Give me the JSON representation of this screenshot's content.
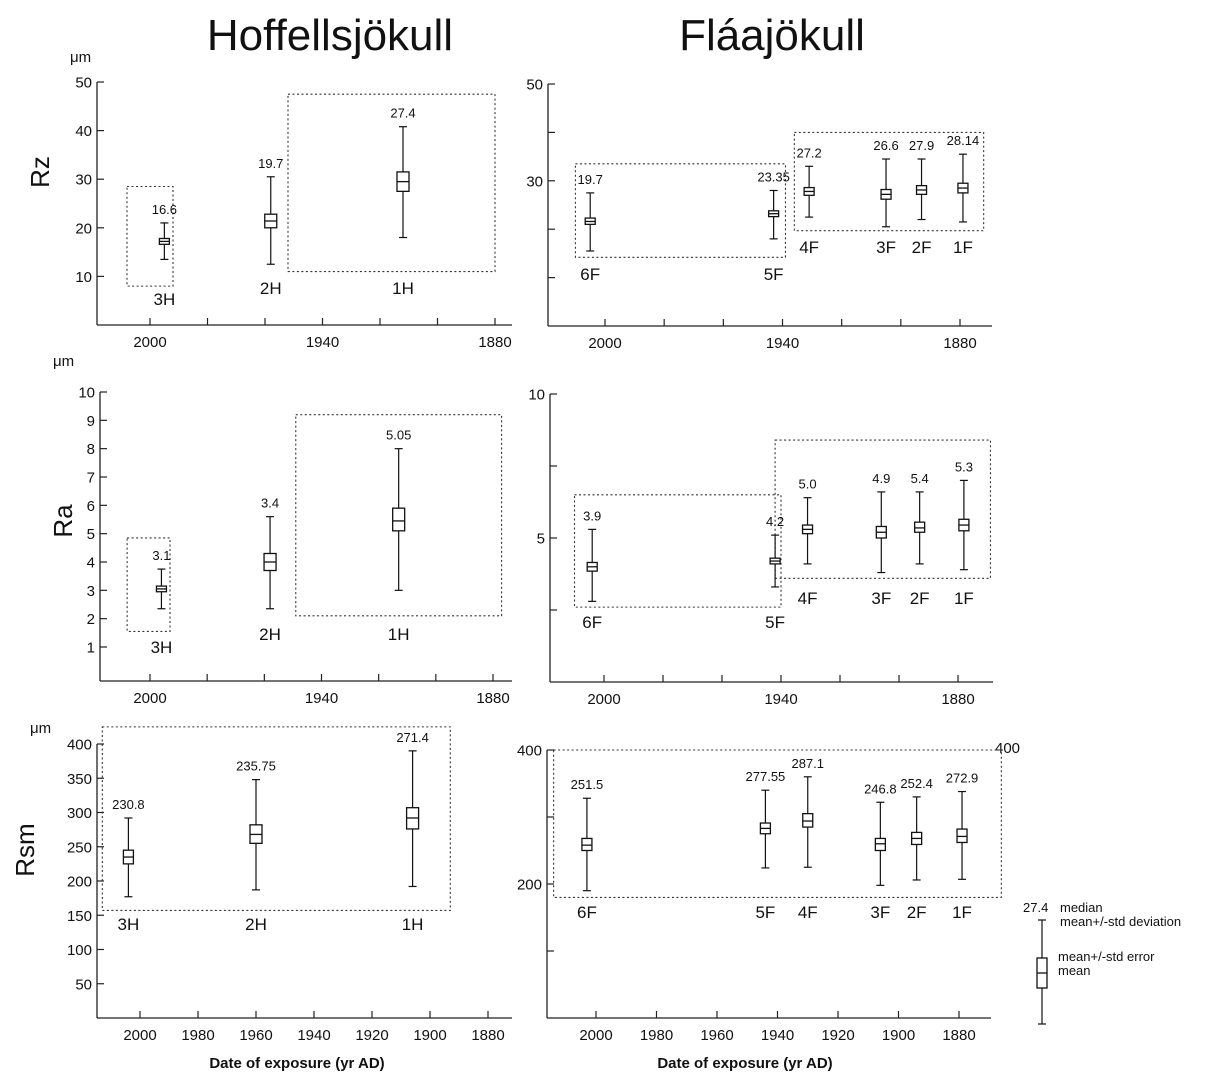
{
  "titles": {
    "left": "Hoffellsjökull",
    "right": "Fláajökull"
  },
  "row_labels": {
    "rz": "Rz",
    "ra": "Ra",
    "rsm": "Rsm"
  },
  "unit": "μm",
  "x_axis_title": "Date of exposure (yr AD)",
  "legend": {
    "value": "27.4",
    "median": "median",
    "mean_std_dev": "mean+/-std deviation",
    "mean_std_err": "mean+/-std error",
    "mean": "mean"
  },
  "extra_label": "400",
  "chart_data": [
    {
      "id": "hoff_rz",
      "type": "boxplot",
      "glacier": "Hoffellsjökull",
      "ylabel": "Rz",
      "unit": "μm",
      "ylim": [
        0,
        50
      ],
      "yticks": [
        10,
        20,
        30,
        40,
        50
      ],
      "ytick_labels": [
        "10",
        "20",
        "30",
        "40",
        "50"
      ],
      "xlim": [
        1870,
        2020
      ],
      "xticks": [
        2000,
        1940,
        1880
      ],
      "xtick_labels": [
        "2000",
        "1940",
        "1880"
      ],
      "xminor": [
        1980,
        1960,
        1920,
        1900
      ],
      "boxes": [
        {
          "x": 1995,
          "median_label": "16.6",
          "mean": 17.2,
          "se": [
            16.6,
            17.8
          ],
          "sd": [
            13.5,
            21.0
          ]
        },
        {
          "x": 1958,
          "median_label": "19.7",
          "mean": 21.4,
          "se": [
            20.0,
            22.8
          ],
          "sd": [
            12.5,
            30.5
          ]
        },
        {
          "x": 1912,
          "median_label": "27.4",
          "mean": 29.5,
          "se": [
            27.5,
            31.5
          ],
          "sd": [
            18.0,
            40.8
          ]
        }
      ],
      "groups": [
        {
          "label": "3H",
          "x": [
            1992,
            2008
          ],
          "y": [
            8,
            28.5
          ]
        },
        {
          "label": "2H",
          "x": [
            1880,
            1952
          ],
          "y": [
            11,
            47.5
          ]
        }
      ]
    },
    {
      "id": "flaa_rz",
      "type": "boxplot",
      "glacier": "Fláajökull",
      "ylabel": "Rz",
      "unit": "μm",
      "ylim": [
        0,
        50
      ],
      "yticks": [
        30,
        50
      ],
      "yminor": [
        10,
        20,
        40
      ],
      "ytick_labels": [
        "30",
        "50"
      ],
      "xlim": [
        1870,
        2020
      ],
      "xticks": [
        2000,
        1940,
        1880
      ],
      "xtick_labels": [
        "2000",
        "1940",
        "1880"
      ],
      "xminor": [
        1980,
        1960,
        1920,
        1900
      ],
      "boxes": [
        {
          "x": 2005,
          "median_label": "19.7",
          "mean": 21.6,
          "se": [
            21.0,
            22.3
          ],
          "sd": [
            15.5,
            27.5
          ]
        },
        {
          "x": 1943,
          "median_label": "23.35",
          "mean": 23.2,
          "se": [
            22.6,
            23.8
          ],
          "sd": [
            18.0,
            28.0
          ]
        },
        {
          "x": 1931,
          "median_label": "27.2",
          "mean": 27.8,
          "se": [
            27.0,
            28.6
          ],
          "sd": [
            22.5,
            33.0
          ]
        },
        {
          "x": 1905,
          "median_label": "26.6",
          "mean": 27.2,
          "se": [
            26.2,
            28.2
          ],
          "sd": [
            20.5,
            34.5
          ]
        },
        {
          "x": 1893,
          "median_label": "27.9",
          "mean": 28.1,
          "se": [
            27.2,
            29.0
          ],
          "sd": [
            22.0,
            34.5
          ]
        },
        {
          "x": 1879,
          "median_label": "28.14",
          "mean": 28.5,
          "se": [
            27.5,
            29.5
          ],
          "sd": [
            21.5,
            35.5
          ]
        }
      ],
      "groups": [
        {
          "label": "6F",
          "x": [
            1939,
            2010
          ],
          "y": [
            14.2,
            33.5
          ]
        },
        {
          "label": "4F",
          "x": [
            1872,
            1936
          ],
          "y": [
            19.7,
            40
          ]
        }
      ]
    },
    {
      "id": "hoff_ra",
      "type": "boxplot",
      "glacier": "Hoffellsjökull",
      "ylabel": "Ra",
      "unit": "μm",
      "ylim": [
        -0.2,
        10
      ],
      "yticks": [
        1,
        2,
        3,
        4,
        5,
        6,
        7,
        8,
        9,
        10
      ],
      "ytick_labels": [
        "1",
        "2",
        "3",
        "4",
        "5",
        "6",
        "7",
        "8",
        "9",
        "10"
      ],
      "xlim": [
        1870,
        2020
      ],
      "xticks": [
        2000,
        1940,
        1880
      ],
      "xtick_labels": [
        "2000",
        "1940",
        "1880"
      ],
      "xminor": [
        1980,
        1960,
        1920,
        1900
      ],
      "boxes": [
        {
          "x": 1996,
          "median_label": "3.1",
          "mean": 3.05,
          "se": [
            2.95,
            3.15
          ],
          "sd": [
            2.35,
            3.75
          ]
        },
        {
          "x": 1958,
          "median_label": "3.4",
          "mean": 4.0,
          "se": [
            3.7,
            4.3
          ],
          "sd": [
            2.35,
            5.6
          ]
        },
        {
          "x": 1913,
          "median_label": "5.05",
          "mean": 5.45,
          "se": [
            5.1,
            5.9
          ],
          "sd": [
            3.0,
            8.0
          ]
        }
      ],
      "groups": [
        {
          "label": "3H",
          "x": [
            1993,
            2008
          ],
          "y": [
            1.55,
            4.85
          ]
        },
        {
          "label": "2H",
          "x": [
            1877,
            1949
          ],
          "y": [
            2.1,
            9.2
          ]
        }
      ]
    },
    {
      "id": "flaa_ra",
      "type": "boxplot",
      "glacier": "Fláajökull",
      "ylabel": "Ra",
      "unit": "μm",
      "ylim": [
        0,
        10
      ],
      "yticks": [
        5,
        10
      ],
      "yminor": [
        2.5,
        7.5
      ],
      "ytick_labels": [
        "5",
        "10"
      ],
      "xlim": [
        1870,
        2020
      ],
      "xticks": [
        2000,
        1940,
        1880
      ],
      "xtick_labels": [
        "2000",
        "1940",
        "1880"
      ],
      "xminor": [
        1980,
        1960,
        1920,
        1900
      ],
      "boxes": [
        {
          "x": 2004,
          "median_label": "3.9",
          "mean": 4.0,
          "se": [
            3.85,
            4.15
          ],
          "sd": [
            2.8,
            5.3
          ]
        },
        {
          "x": 1942,
          "median_label": "4.2",
          "mean": 4.2,
          "se": [
            4.1,
            4.3
          ],
          "sd": [
            3.3,
            5.1
          ]
        },
        {
          "x": 1931,
          "median_label": "5.0",
          "mean": 5.3,
          "se": [
            5.15,
            5.45
          ],
          "sd": [
            4.1,
            6.4
          ]
        },
        {
          "x": 1906,
          "median_label": "4.9",
          "mean": 5.2,
          "se": [
            5.0,
            5.4
          ],
          "sd": [
            3.8,
            6.6
          ]
        },
        {
          "x": 1893,
          "median_label": "5.4",
          "mean": 5.35,
          "se": [
            5.2,
            5.55
          ],
          "sd": [
            4.1,
            6.6
          ]
        },
        {
          "x": 1878,
          "median_label": "5.3",
          "mean": 5.45,
          "se": [
            5.25,
            5.65
          ],
          "sd": [
            3.9,
            7.0
          ]
        }
      ],
      "groups": [
        {
          "label": "6F",
          "x": [
            1940,
            2010
          ],
          "y": [
            2.6,
            6.5
          ]
        },
        {
          "label": "4F",
          "x": [
            1869,
            1942
          ],
          "y": [
            3.6,
            8.4
          ]
        }
      ]
    },
    {
      "id": "hoff_rsm",
      "type": "boxplot",
      "glacier": "Hoffellsjökull",
      "ylabel": "Rsm",
      "unit": "μm",
      "ylim": [
        0,
        400
      ],
      "yticks": [
        50,
        100,
        150,
        200,
        250,
        300,
        350,
        400
      ],
      "ytick_labels": [
        "50",
        "100",
        "150",
        "200",
        "250",
        "300",
        "350",
        "400"
      ],
      "xlim": [
        1870,
        2020
      ],
      "xticks": [
        2000,
        1980,
        1960,
        1940,
        1920,
        1900,
        1880
      ],
      "xtick_labels": [
        "2000",
        "1980",
        "1960",
        "1940",
        "1920",
        "1900",
        "1880"
      ],
      "boxes": [
        {
          "x": 2004,
          "median_label": "230.8",
          "mean": 235,
          "se": [
            225,
            245
          ],
          "sd": [
            177,
            292
          ]
        },
        {
          "x": 1960,
          "median_label": "235.75",
          "mean": 268,
          "se": [
            255,
            282
          ],
          "sd": [
            187,
            348
          ]
        },
        {
          "x": 1906,
          "median_label": "271.4",
          "mean": 292,
          "se": [
            276,
            307
          ],
          "sd": [
            192,
            390
          ]
        }
      ],
      "groups": [
        {
          "label": "3H",
          "x": [
            1893,
            2013
          ],
          "y": [
            157,
            425
          ]
        }
      ]
    },
    {
      "id": "flaa_rsm",
      "type": "boxplot",
      "glacier": "Fláajökull",
      "ylabel": "Rsm",
      "unit": "μm",
      "ylim": [
        0,
        400
      ],
      "yticks": [
        200,
        400
      ],
      "yminor": [
        100,
        300
      ],
      "ytick_labels": [
        "200",
        "400"
      ],
      "xlim": [
        1870,
        2020
      ],
      "xticks": [
        2000,
        1980,
        1960,
        1940,
        1920,
        1900,
        1880
      ],
      "xtick_labels": [
        "2000",
        "1980",
        "1960",
        "1940",
        "1920",
        "1900",
        "1880"
      ],
      "boxes": [
        {
          "x": 2003,
          "median_label": "251.5",
          "mean": 258,
          "se": [
            250,
            268
          ],
          "sd": [
            190,
            328
          ]
        },
        {
          "x": 1944,
          "median_label": "277.55",
          "mean": 283,
          "se": [
            275,
            291
          ],
          "sd": [
            224,
            340
          ]
        },
        {
          "x": 1930,
          "median_label": "287.1",
          "mean": 294,
          "se": [
            285,
            305
          ],
          "sd": [
            225,
            360
          ]
        },
        {
          "x": 1906,
          "median_label": "246.8",
          "mean": 260,
          "se": [
            250,
            268
          ],
          "sd": [
            198,
            322
          ]
        },
        {
          "x": 1894,
          "median_label": "252.4",
          "mean": 268,
          "se": [
            259,
            277
          ],
          "sd": [
            206,
            330
          ]
        },
        {
          "x": 1879,
          "median_label": "272.9",
          "mean": 271,
          "se": [
            262,
            282
          ],
          "sd": [
            207,
            338
          ]
        }
      ],
      "groups": [
        {
          "label": "6F",
          "x": [
            1866,
            2014
          ],
          "y": [
            180,
            400
          ]
        }
      ]
    }
  ]
}
